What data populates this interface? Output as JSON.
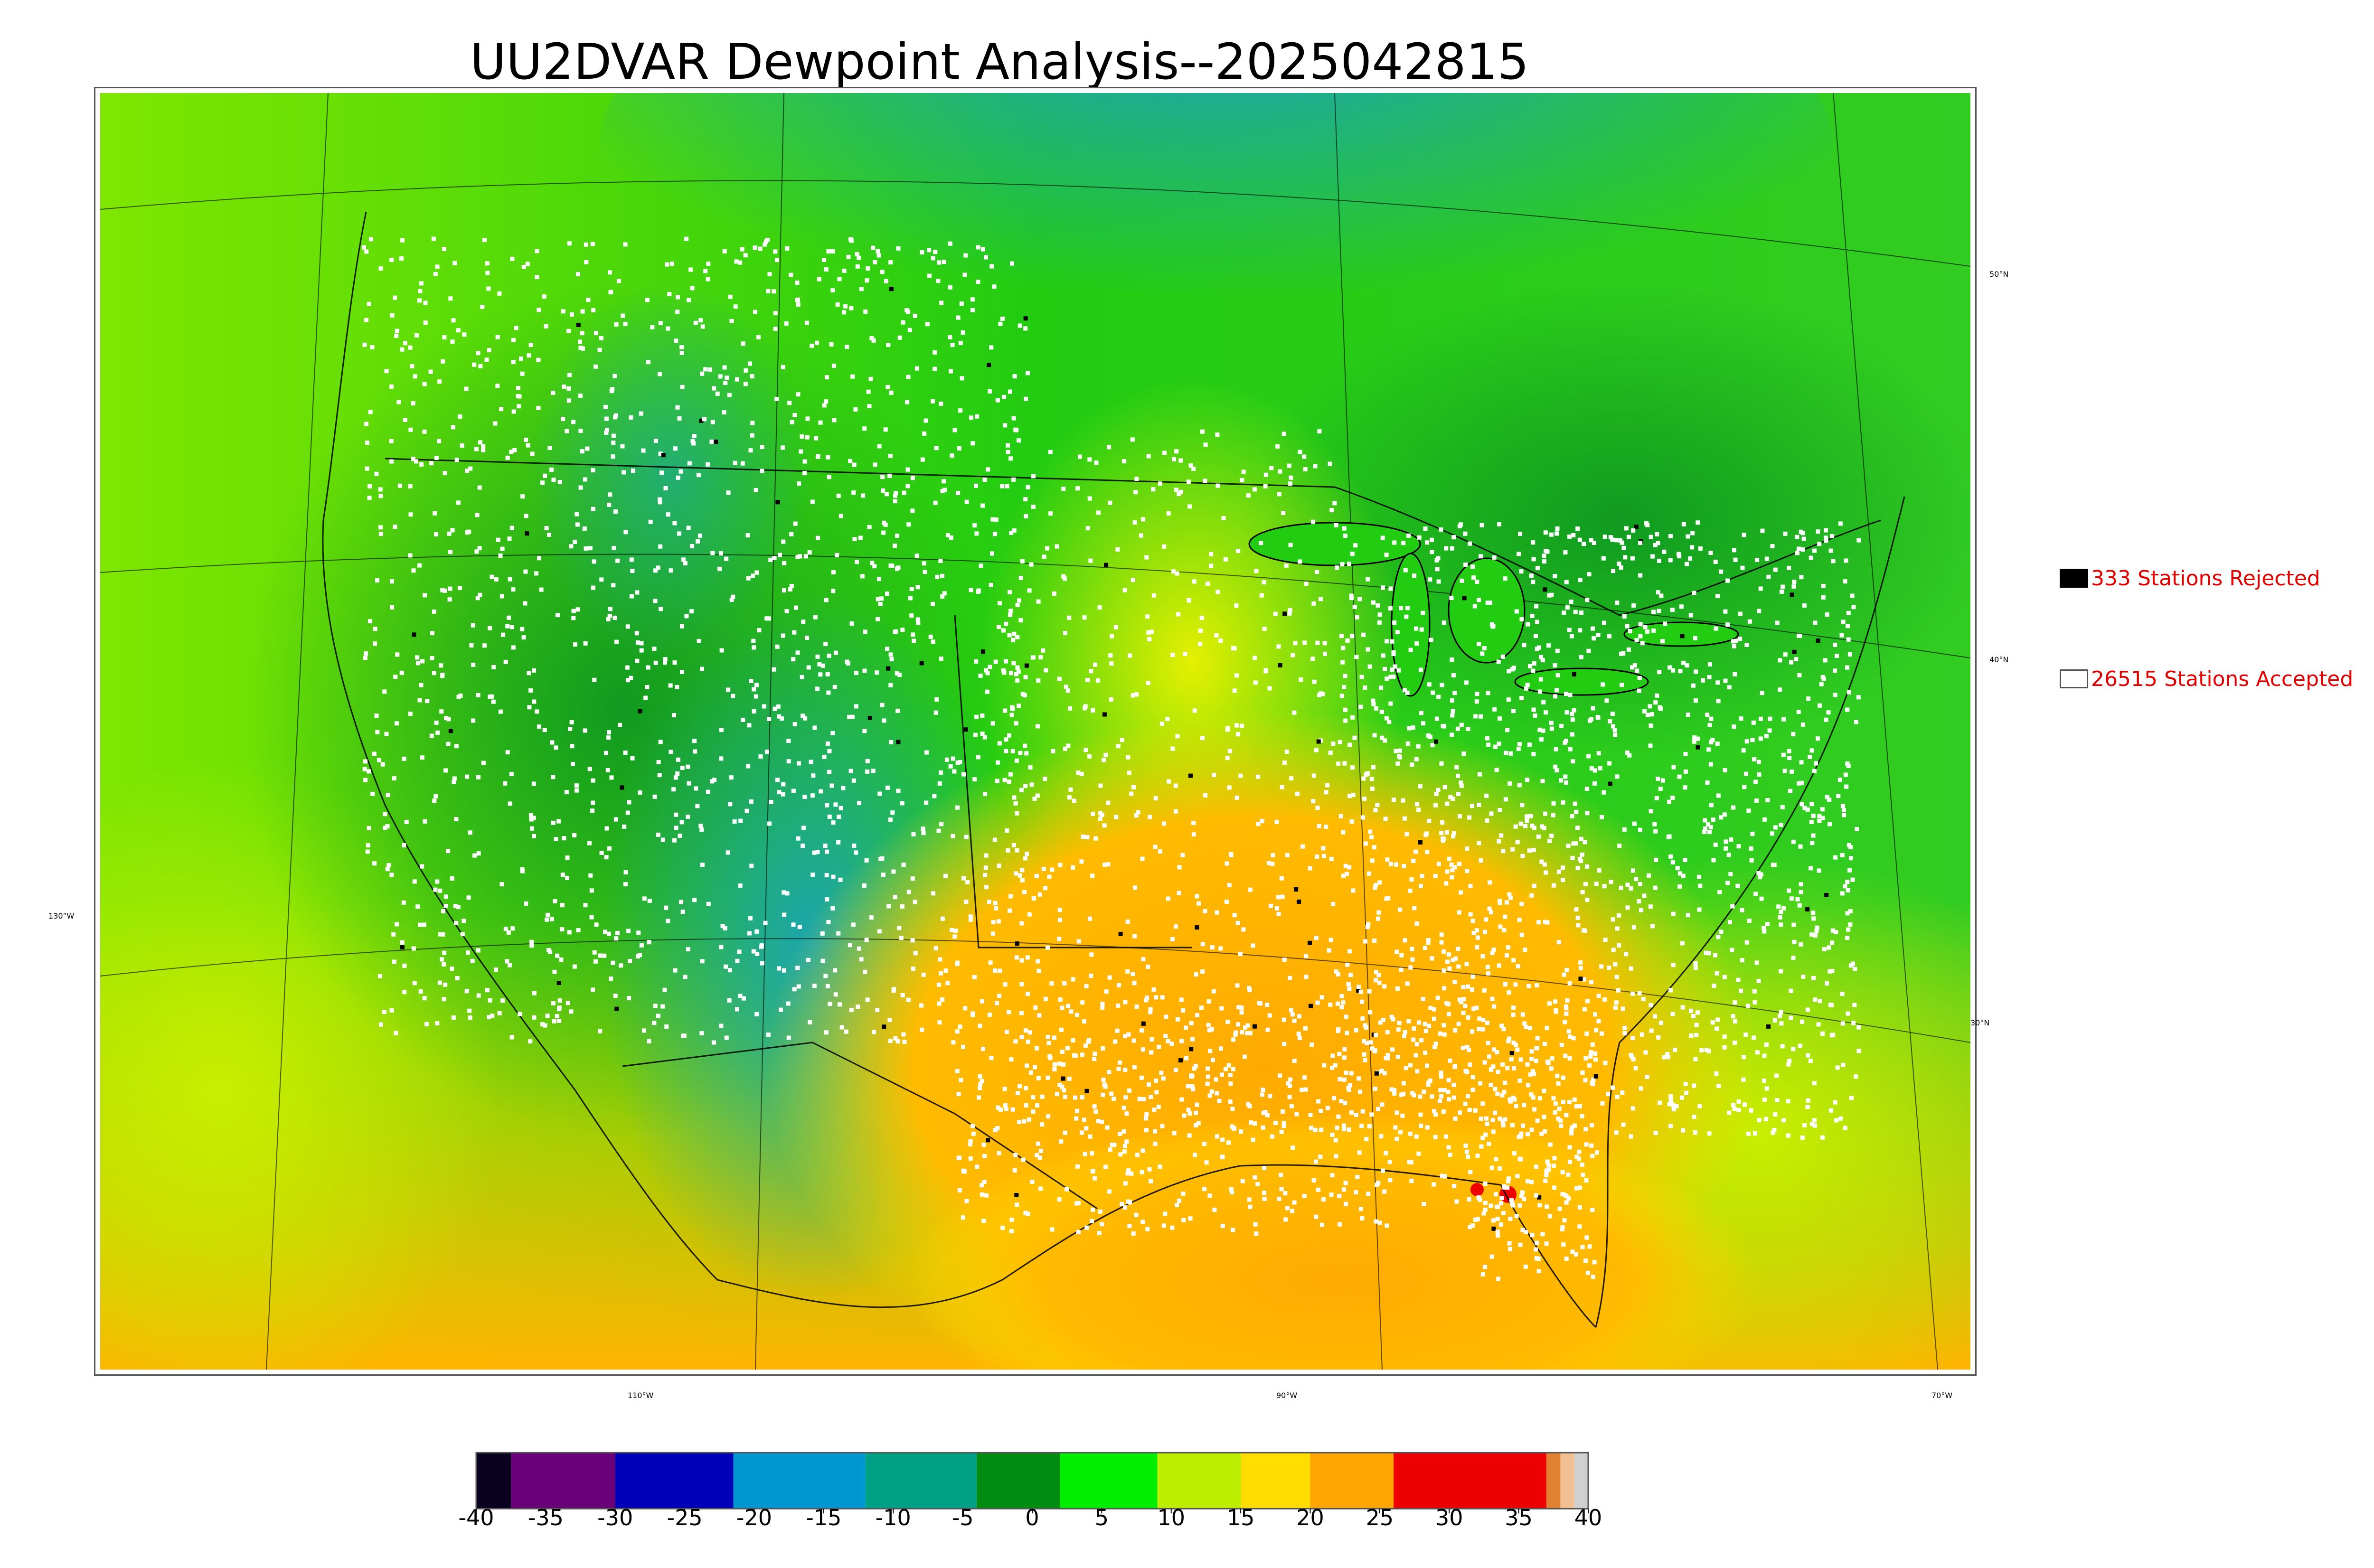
{
  "title": "UU2DVAR Dewpoint Analysis--2025042815",
  "legend": {
    "rejected": {
      "label": "333 Stations Rejected",
      "box_color": "#000000"
    },
    "accepted": {
      "label": "26515 Stations Accepted",
      "box_color": "#ffffff"
    }
  },
  "graticule": {
    "lat_labels": [
      "50°N",
      "40°N",
      "30°N"
    ],
    "lon_labels": [
      "130°W",
      "110°W",
      "90°W",
      "70°W"
    ]
  },
  "colorbar": {
    "ticks": [
      "-40",
      "-35",
      "-30",
      "-25",
      "-20",
      "-15",
      "-10",
      "-5",
      "0",
      "5",
      "10",
      "15",
      "20",
      "25",
      "30",
      "35",
      "40"
    ],
    "range": [
      -40,
      40
    ],
    "colors": [
      {
        "from": -40,
        "to": -37.5,
        "color": "#0a0020"
      },
      {
        "from": -37.5,
        "to": -30,
        "color": "#6a007a"
      },
      {
        "from": -30,
        "to": -21.5,
        "color": "#0000b8"
      },
      {
        "from": -21.5,
        "to": -12,
        "color": "#0096d2"
      },
      {
        "from": -12,
        "to": -4,
        "color": "#00a086"
      },
      {
        "from": -4,
        "to": 2,
        "color": "#008c10"
      },
      {
        "from": 2,
        "to": 9,
        "color": "#00ee00"
      },
      {
        "from": 9,
        "to": 15,
        "color": "#bbee00"
      },
      {
        "from": 15,
        "to": 20,
        "color": "#ffdd00"
      },
      {
        "from": 20,
        "to": 26,
        "color": "#ffa500"
      },
      {
        "from": 26,
        "to": 37,
        "color": "#ee0000"
      },
      {
        "from": 37,
        "to": 38,
        "color": "#e08030"
      },
      {
        "from": 38,
        "to": 39,
        "color": "#f0c090"
      },
      {
        "from": 39,
        "to": 40,
        "color": "#d0d0d0"
      }
    ]
  }
}
